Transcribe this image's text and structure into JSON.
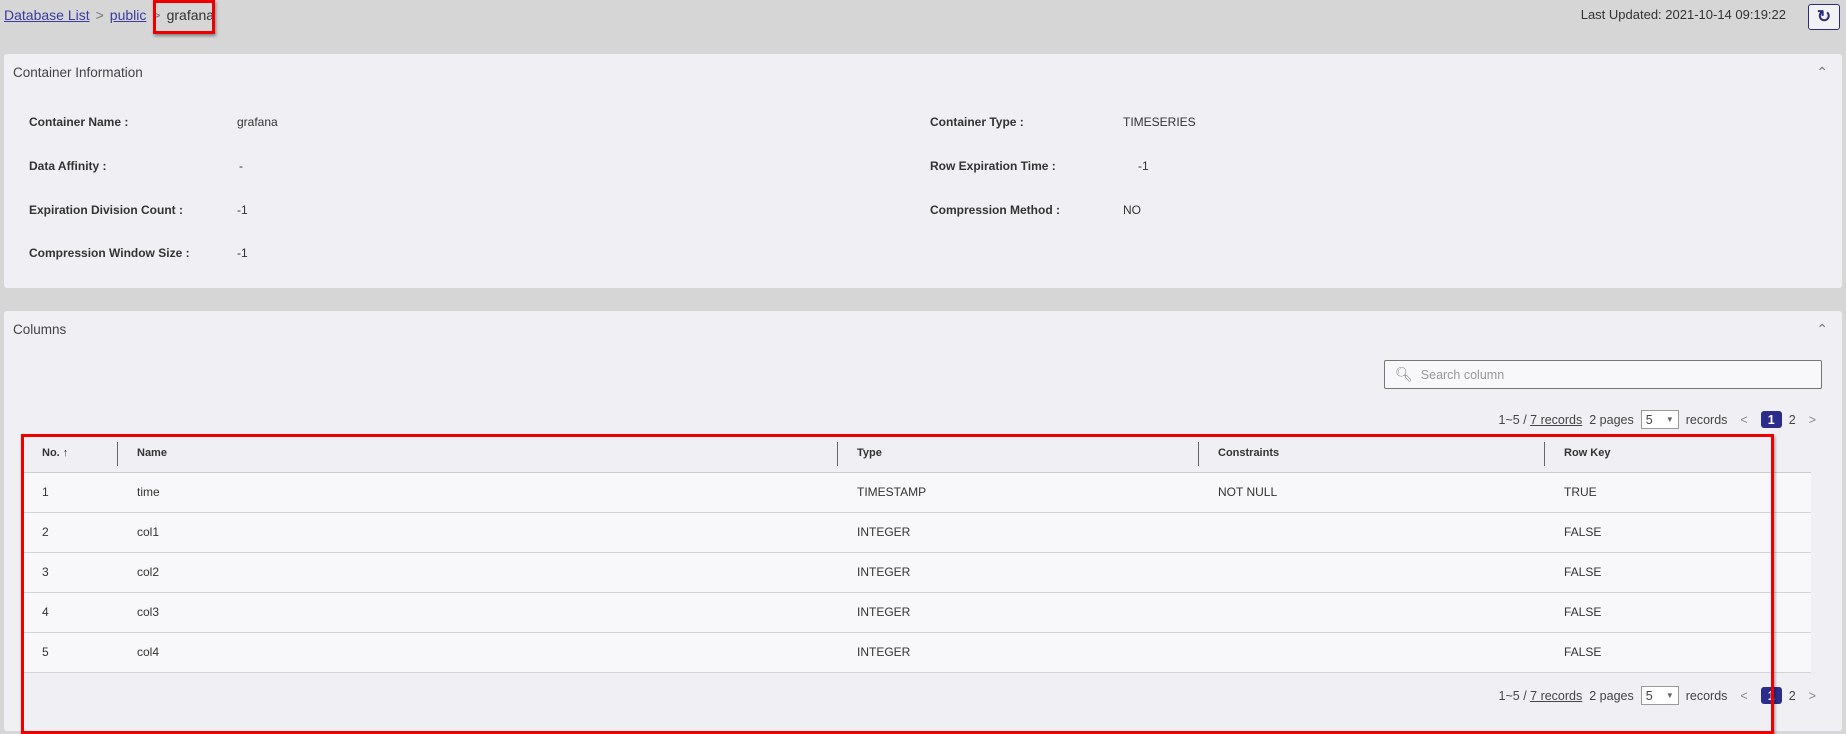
{
  "breadcrumb": {
    "items": [
      {
        "label": "Database List"
      },
      {
        "label": "public"
      }
    ],
    "current": "grafana"
  },
  "header": {
    "last_updated": "Last Updated: 2021-10-14 09:19:22",
    "refresh_icon": "refresh-icon"
  },
  "container_info": {
    "title": "Container Information",
    "fields": [
      {
        "label": "Container Name :",
        "value": "grafana"
      },
      {
        "label": "Container Type :",
        "value": "TIMESERIES"
      },
      {
        "label": "Data Affinity :",
        "value": "-"
      },
      {
        "label": "Row Expiration Time :",
        "value": "-1"
      },
      {
        "label": "Expiration Division Count :",
        "value": "-1"
      },
      {
        "label": "Compression Method :",
        "value": "NO"
      },
      {
        "label": "Compression Window Size :",
        "value": "-1"
      }
    ]
  },
  "columns": {
    "title": "Columns",
    "search_placeholder": "Search column",
    "pagination": {
      "range": "1~5 / ",
      "records_link": "7 records",
      "pages": "2 pages",
      "page_size": "5",
      "records_label": "records",
      "current_page": "1",
      "other_page": "2"
    },
    "headers": [
      "No.",
      "Name",
      "Type",
      "Constraints",
      "Row Key"
    ],
    "rows": [
      [
        "1",
        "time",
        "TIMESTAMP",
        "NOT NULL",
        "TRUE"
      ],
      [
        "2",
        "col1",
        "INTEGER",
        "",
        "FALSE"
      ],
      [
        "3",
        "col2",
        "INTEGER",
        "",
        "FALSE"
      ],
      [
        "4",
        "col3",
        "INTEGER",
        "",
        "FALSE"
      ],
      [
        "5",
        "col4",
        "INTEGER",
        "",
        "FALSE"
      ]
    ]
  },
  "colors": {
    "accent": "#2c2c8a",
    "highlight": "#ee0000"
  }
}
